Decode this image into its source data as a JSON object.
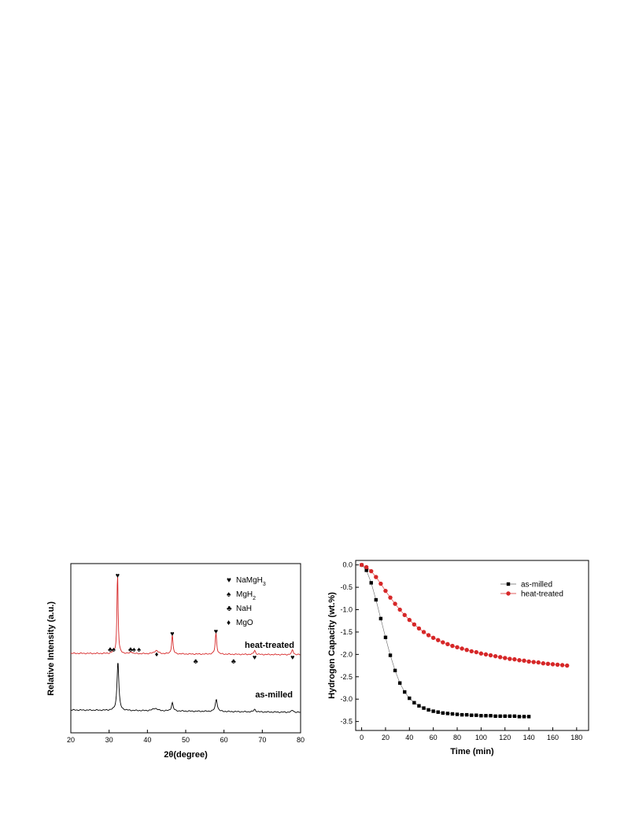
{
  "chart_data": [
    {
      "type": "line",
      "xlabel": "2θ(degree)",
      "ylabel": "Relative Intensity (a.u.)",
      "xlim": [
        20,
        80
      ],
      "x_ticks": [
        "20",
        "30",
        "40",
        "50",
        "60",
        "70",
        "80"
      ],
      "grid": false,
      "legend": {
        "placement": "top-right",
        "entries": [
          {
            "symbol": "♥",
            "name": "NaMgH",
            "sub": "3"
          },
          {
            "symbol": "♠",
            "name": "MgH",
            "sub": "2"
          },
          {
            "symbol": "♣",
            "name": "NaH",
            "sub": ""
          },
          {
            "symbol": "♦",
            "name": "MgO",
            "sub": ""
          }
        ]
      },
      "series": [
        {
          "name": "heat-treated",
          "color": "#d62728",
          "peaks": [
            {
              "x": 32.2,
              "height": 100,
              "width": 0.35
            },
            {
              "x": 46.5,
              "height": 24,
              "width": 0.4
            },
            {
              "x": 57.9,
              "height": 26,
              "width": 0.45
            },
            {
              "x": 68.0,
              "height": 5,
              "width": 0.5
            },
            {
              "x": 77.9,
              "height": 6,
              "width": 0.5
            },
            {
              "x": 31.1,
              "height": 3,
              "width": 0.4
            },
            {
              "x": 35.8,
              "height": 2.5,
              "width": 0.5
            },
            {
              "x": 42.3,
              "height": 4,
              "width": 1.2
            }
          ]
        },
        {
          "name": "as-milled",
          "color": "#000000",
          "peaks": [
            {
              "x": 32.3,
              "height": 60,
              "width": 0.55
            },
            {
              "x": 46.5,
              "height": 10,
              "width": 0.55
            },
            {
              "x": 58.0,
              "height": 15,
              "width": 0.6
            },
            {
              "x": 68.0,
              "height": 3,
              "width": 0.6
            },
            {
              "x": 77.9,
              "height": 2.5,
              "width": 0.6
            },
            {
              "x": 42.0,
              "height": 3,
              "width": 1.5
            }
          ]
        }
      ],
      "annotations": [
        {
          "symbol": "♥",
          "x": 32.2
        },
        {
          "symbol": "♣",
          "x": 30.3
        },
        {
          "symbol": "♠",
          "x": 31.2
        },
        {
          "symbol": "♣",
          "x": 35.6
        },
        {
          "symbol": "♠",
          "x": 36.5
        },
        {
          "symbol": "♠",
          "x": 37.8
        },
        {
          "symbol": "♦",
          "x": 42.4
        },
        {
          "symbol": "♥",
          "x": 46.5
        },
        {
          "symbol": "♣",
          "x": 52.6
        },
        {
          "symbol": "♥",
          "x": 57.9
        },
        {
          "symbol": "♣",
          "x": 62.5
        },
        {
          "symbol": "♥",
          "x": 68.0
        },
        {
          "symbol": "♥",
          "x": 77.9
        }
      ]
    },
    {
      "type": "scatter",
      "xlabel": "Time (min)",
      "ylabel": "Hydrogen Capacity (wt.%)",
      "xlim": [
        -5,
        190
      ],
      "ylim": [
        -3.7,
        0.1
      ],
      "x_ticks": [
        "0",
        "20",
        "40",
        "60",
        "80",
        "100",
        "120",
        "140",
        "160",
        "180"
      ],
      "y_ticks": [
        "0.0",
        "-0.5",
        "-1.0",
        "-1.5",
        "-2.0",
        "-2.5",
        "-3.0",
        "-3.5"
      ],
      "grid": false,
      "legend_placement": "top-right",
      "series": [
        {
          "name": "as-milled",
          "color": "#000000",
          "marker": "square",
          "x": [
            0,
            4,
            8,
            12,
            16,
            20,
            24,
            28,
            32,
            36,
            40,
            44,
            48,
            52,
            56,
            60,
            64,
            68,
            72,
            76,
            80,
            84,
            88,
            92,
            96,
            100,
            104,
            108,
            112,
            116,
            120,
            124,
            128,
            132,
            136,
            140
          ],
          "y": [
            0.0,
            -0.12,
            -0.4,
            -0.78,
            -1.2,
            -1.62,
            -2.02,
            -2.36,
            -2.64,
            -2.84,
            -2.98,
            -3.08,
            -3.15,
            -3.2,
            -3.24,
            -3.27,
            -3.29,
            -3.31,
            -3.32,
            -3.33,
            -3.34,
            -3.35,
            -3.35,
            -3.36,
            -3.36,
            -3.37,
            -3.37,
            -3.37,
            -3.38,
            -3.38,
            -3.38,
            -3.38,
            -3.38,
            -3.39,
            -3.39,
            -3.39
          ]
        },
        {
          "name": "heat-treated",
          "color": "#d62728",
          "marker": "circle",
          "x": [
            0,
            4,
            8,
            12,
            16,
            20,
            24,
            28,
            32,
            36,
            40,
            44,
            48,
            52,
            56,
            60,
            64,
            68,
            72,
            76,
            80,
            84,
            88,
            92,
            96,
            100,
            104,
            108,
            112,
            116,
            120,
            124,
            128,
            132,
            136,
            140,
            144,
            148,
            152,
            156,
            160,
            164,
            168,
            172
          ],
          "y": [
            0.0,
            -0.05,
            -0.14,
            -0.27,
            -0.42,
            -0.58,
            -0.73,
            -0.87,
            -1.0,
            -1.12,
            -1.23,
            -1.33,
            -1.42,
            -1.5,
            -1.57,
            -1.63,
            -1.68,
            -1.73,
            -1.77,
            -1.81,
            -1.84,
            -1.87,
            -1.9,
            -1.93,
            -1.95,
            -1.98,
            -2.0,
            -2.02,
            -2.04,
            -2.06,
            -2.08,
            -2.1,
            -2.11,
            -2.13,
            -2.14,
            -2.16,
            -2.17,
            -2.18,
            -2.2,
            -2.21,
            -2.22,
            -2.23,
            -2.24,
            -2.25
          ]
        }
      ]
    }
  ]
}
